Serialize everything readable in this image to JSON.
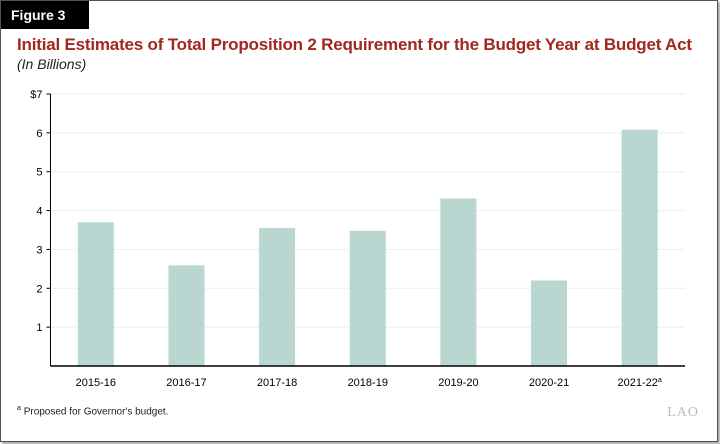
{
  "figure_label": "Figure 3",
  "chart_data": {
    "type": "bar",
    "title": "Initial Estimates of Total Proposition 2 Requirement for the Budget Year at Budget Act",
    "subtitle": "(In Billions)",
    "categories": [
      "2015-16",
      "2016-17",
      "2017-18",
      "2018-19",
      "2019-20",
      "2020-21",
      "2021-22"
    ],
    "category_footnotes": [
      "",
      "",
      "",
      "",
      "",
      "",
      "a"
    ],
    "values": [
      3.7,
      2.59,
      3.55,
      3.48,
      4.31,
      2.2,
      6.08
    ],
    "ylim": [
      0,
      7
    ],
    "yticks": [
      "1",
      "2",
      "3",
      "4",
      "5",
      "6",
      "$7"
    ],
    "grid": true,
    "bar_color": "#b9d6d0"
  },
  "footnote": {
    "marker": "a",
    "text": "Proposed for Governor's budget."
  },
  "logo": "LAO"
}
